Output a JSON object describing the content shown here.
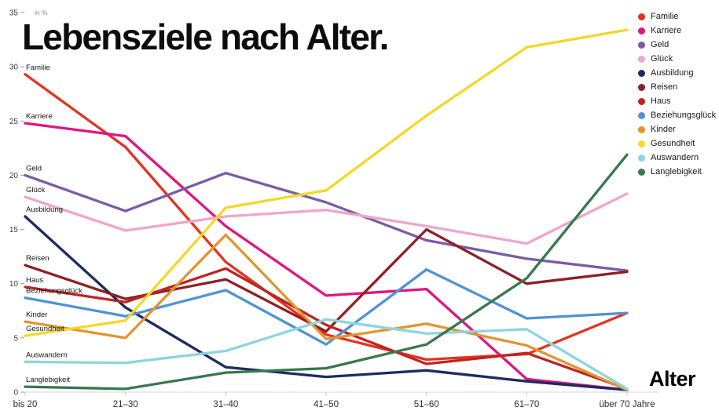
{
  "chart_data": {
    "type": "line",
    "title": "Lebensziele nach Alter.",
    "ylabel": "in %",
    "xlabel": "Alter",
    "ylim": [
      0,
      35
    ],
    "yticks": [
      0,
      5,
      10,
      15,
      20,
      25,
      30,
      35
    ],
    "grid": false,
    "legend_position": "top-right",
    "categories": [
      "bis 20",
      "21–30",
      "31–40",
      "41–50",
      "51–60",
      "61–70",
      "über 70 Jahre"
    ],
    "series": [
      {
        "name": "Familie",
        "color": "#e5321e",
        "values": [
          29.3,
          22.6,
          12.0,
          5.3,
          3.0,
          3.5,
          7.3
        ]
      },
      {
        "name": "Karriere",
        "color": "#e0157e",
        "values": [
          24.8,
          23.6,
          15.3,
          8.9,
          9.5,
          1.2,
          0.2
        ]
      },
      {
        "name": "Geld",
        "color": "#7a5ca5",
        "values": [
          20.0,
          16.7,
          20.2,
          17.5,
          14.0,
          12.3,
          11.2
        ]
      },
      {
        "name": "Glück",
        "color": "#f0a5c9",
        "values": [
          18.0,
          14.9,
          16.2,
          16.8,
          15.3,
          13.7,
          18.3
        ]
      },
      {
        "name": "Ausbildung",
        "color": "#1d2b5f",
        "values": [
          16.2,
          7.8,
          2.3,
          1.4,
          2.0,
          1.0,
          0.2
        ]
      },
      {
        "name": "Reisen",
        "color": "#8e1f24",
        "values": [
          11.7,
          8.6,
          10.4,
          5.6,
          15.0,
          10.0,
          11.1
        ]
      },
      {
        "name": "Haus",
        "color": "#bf2420",
        "values": [
          9.7,
          8.3,
          11.4,
          6.2,
          2.6,
          3.6,
          0.3
        ]
      },
      {
        "name": "Beziehungsglück",
        "color": "#4e93d4",
        "values": [
          8.7,
          7.0,
          9.4,
          4.4,
          11.3,
          6.8,
          7.3
        ]
      },
      {
        "name": "Kinder",
        "color": "#e2952f",
        "values": [
          6.5,
          5.0,
          14.5,
          4.9,
          6.3,
          4.3,
          0.2
        ]
      },
      {
        "name": "Gesundheit",
        "color": "#f5d727",
        "values": [
          5.2,
          6.6,
          17.0,
          18.6,
          25.5,
          31.8,
          33.4
        ]
      },
      {
        "name": "Auswandern",
        "color": "#8ed5df",
        "values": [
          2.8,
          2.7,
          3.8,
          6.7,
          5.4,
          5.8,
          0.3
        ]
      },
      {
        "name": "Langlebigkeit",
        "color": "#37784e",
        "values": [
          0.5,
          0.3,
          1.8,
          2.2,
          4.4,
          10.5,
          21.9
        ]
      }
    ]
  }
}
